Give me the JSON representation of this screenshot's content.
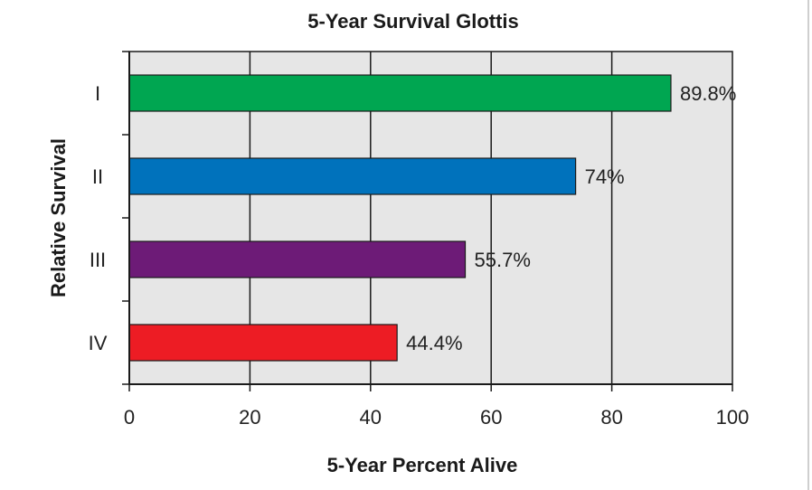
{
  "chart_data": {
    "type": "bar",
    "orientation": "horizontal",
    "title": "5-Year Survival Glottis",
    "xlabel": "5-Year Percent Alive",
    "ylabel": "Relative Survival",
    "categories": [
      "I",
      "II",
      "III",
      "IV"
    ],
    "values": [
      89.8,
      74,
      55.7,
      44.4
    ],
    "data_labels": [
      "89.8%",
      "74%",
      "55.7%",
      "44.4%"
    ],
    "colors": [
      "#00a651",
      "#0072bc",
      "#6d1b77",
      "#ed1c24"
    ],
    "xlim": [
      0,
      100
    ],
    "xticks": [
      0,
      20,
      40,
      60,
      80,
      100
    ],
    "xtick_labels": [
      "0",
      "20",
      "40",
      "60",
      "80",
      "100"
    ],
    "grid": true,
    "plot_background": "#e6e6e6"
  }
}
